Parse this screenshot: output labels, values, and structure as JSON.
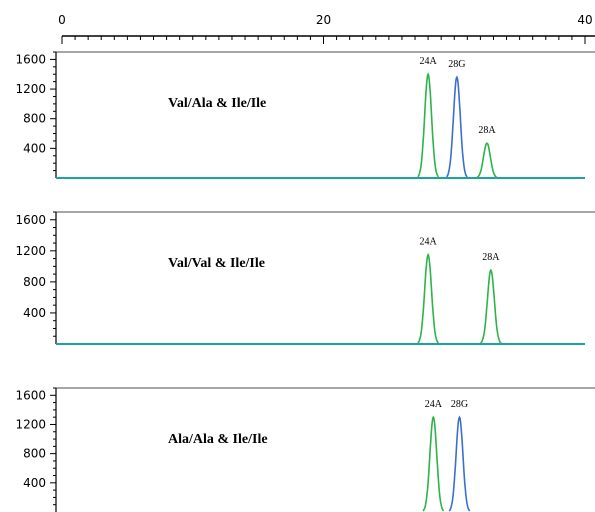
{
  "chart_data": {
    "type": "line",
    "top_axis": {
      "ticks": [
        "0",
        "20",
        "40"
      ],
      "range": [
        0,
        40
      ]
    },
    "panels": [
      {
        "label": "Val/Ala & Ile/Ile",
        "ylim": [
          0,
          1700
        ],
        "y_ticks": [
          "1600",
          "1200",
          "800",
          "400"
        ],
        "peaks": [
          {
            "label": "24A",
            "x": 28.0,
            "height": 1400,
            "color": "#2db34a"
          },
          {
            "label": "28G",
            "x": 30.2,
            "height": 1360,
            "color": "#3a6fd0"
          },
          {
            "label": "28A",
            "x": 32.5,
            "height": 470,
            "color": "#2db34a"
          }
        ]
      },
      {
        "label": "Val/Val & Ile/Ile",
        "ylim": [
          0,
          1700
        ],
        "y_ticks": [
          "1600",
          "1200",
          "800",
          "400"
        ],
        "peaks": [
          {
            "label": "24A",
            "x": 28.0,
            "height": 1150,
            "color": "#2db34a"
          },
          {
            "label": "28A",
            "x": 32.8,
            "height": 950,
            "color": "#2db34a"
          }
        ]
      },
      {
        "label": "Ala/Ala & Ile/Ile",
        "ylim": [
          0,
          1700
        ],
        "y_ticks": [
          "1600",
          "1200",
          "800",
          "400"
        ],
        "peaks": [
          {
            "label": "24A",
            "x": 28.4,
            "height": 1300,
            "color": "#2db34a"
          },
          {
            "label": "28G",
            "x": 30.4,
            "height": 1300,
            "color": "#3a6fd0"
          }
        ]
      }
    ],
    "baseline_color": "#1aa3a3"
  }
}
